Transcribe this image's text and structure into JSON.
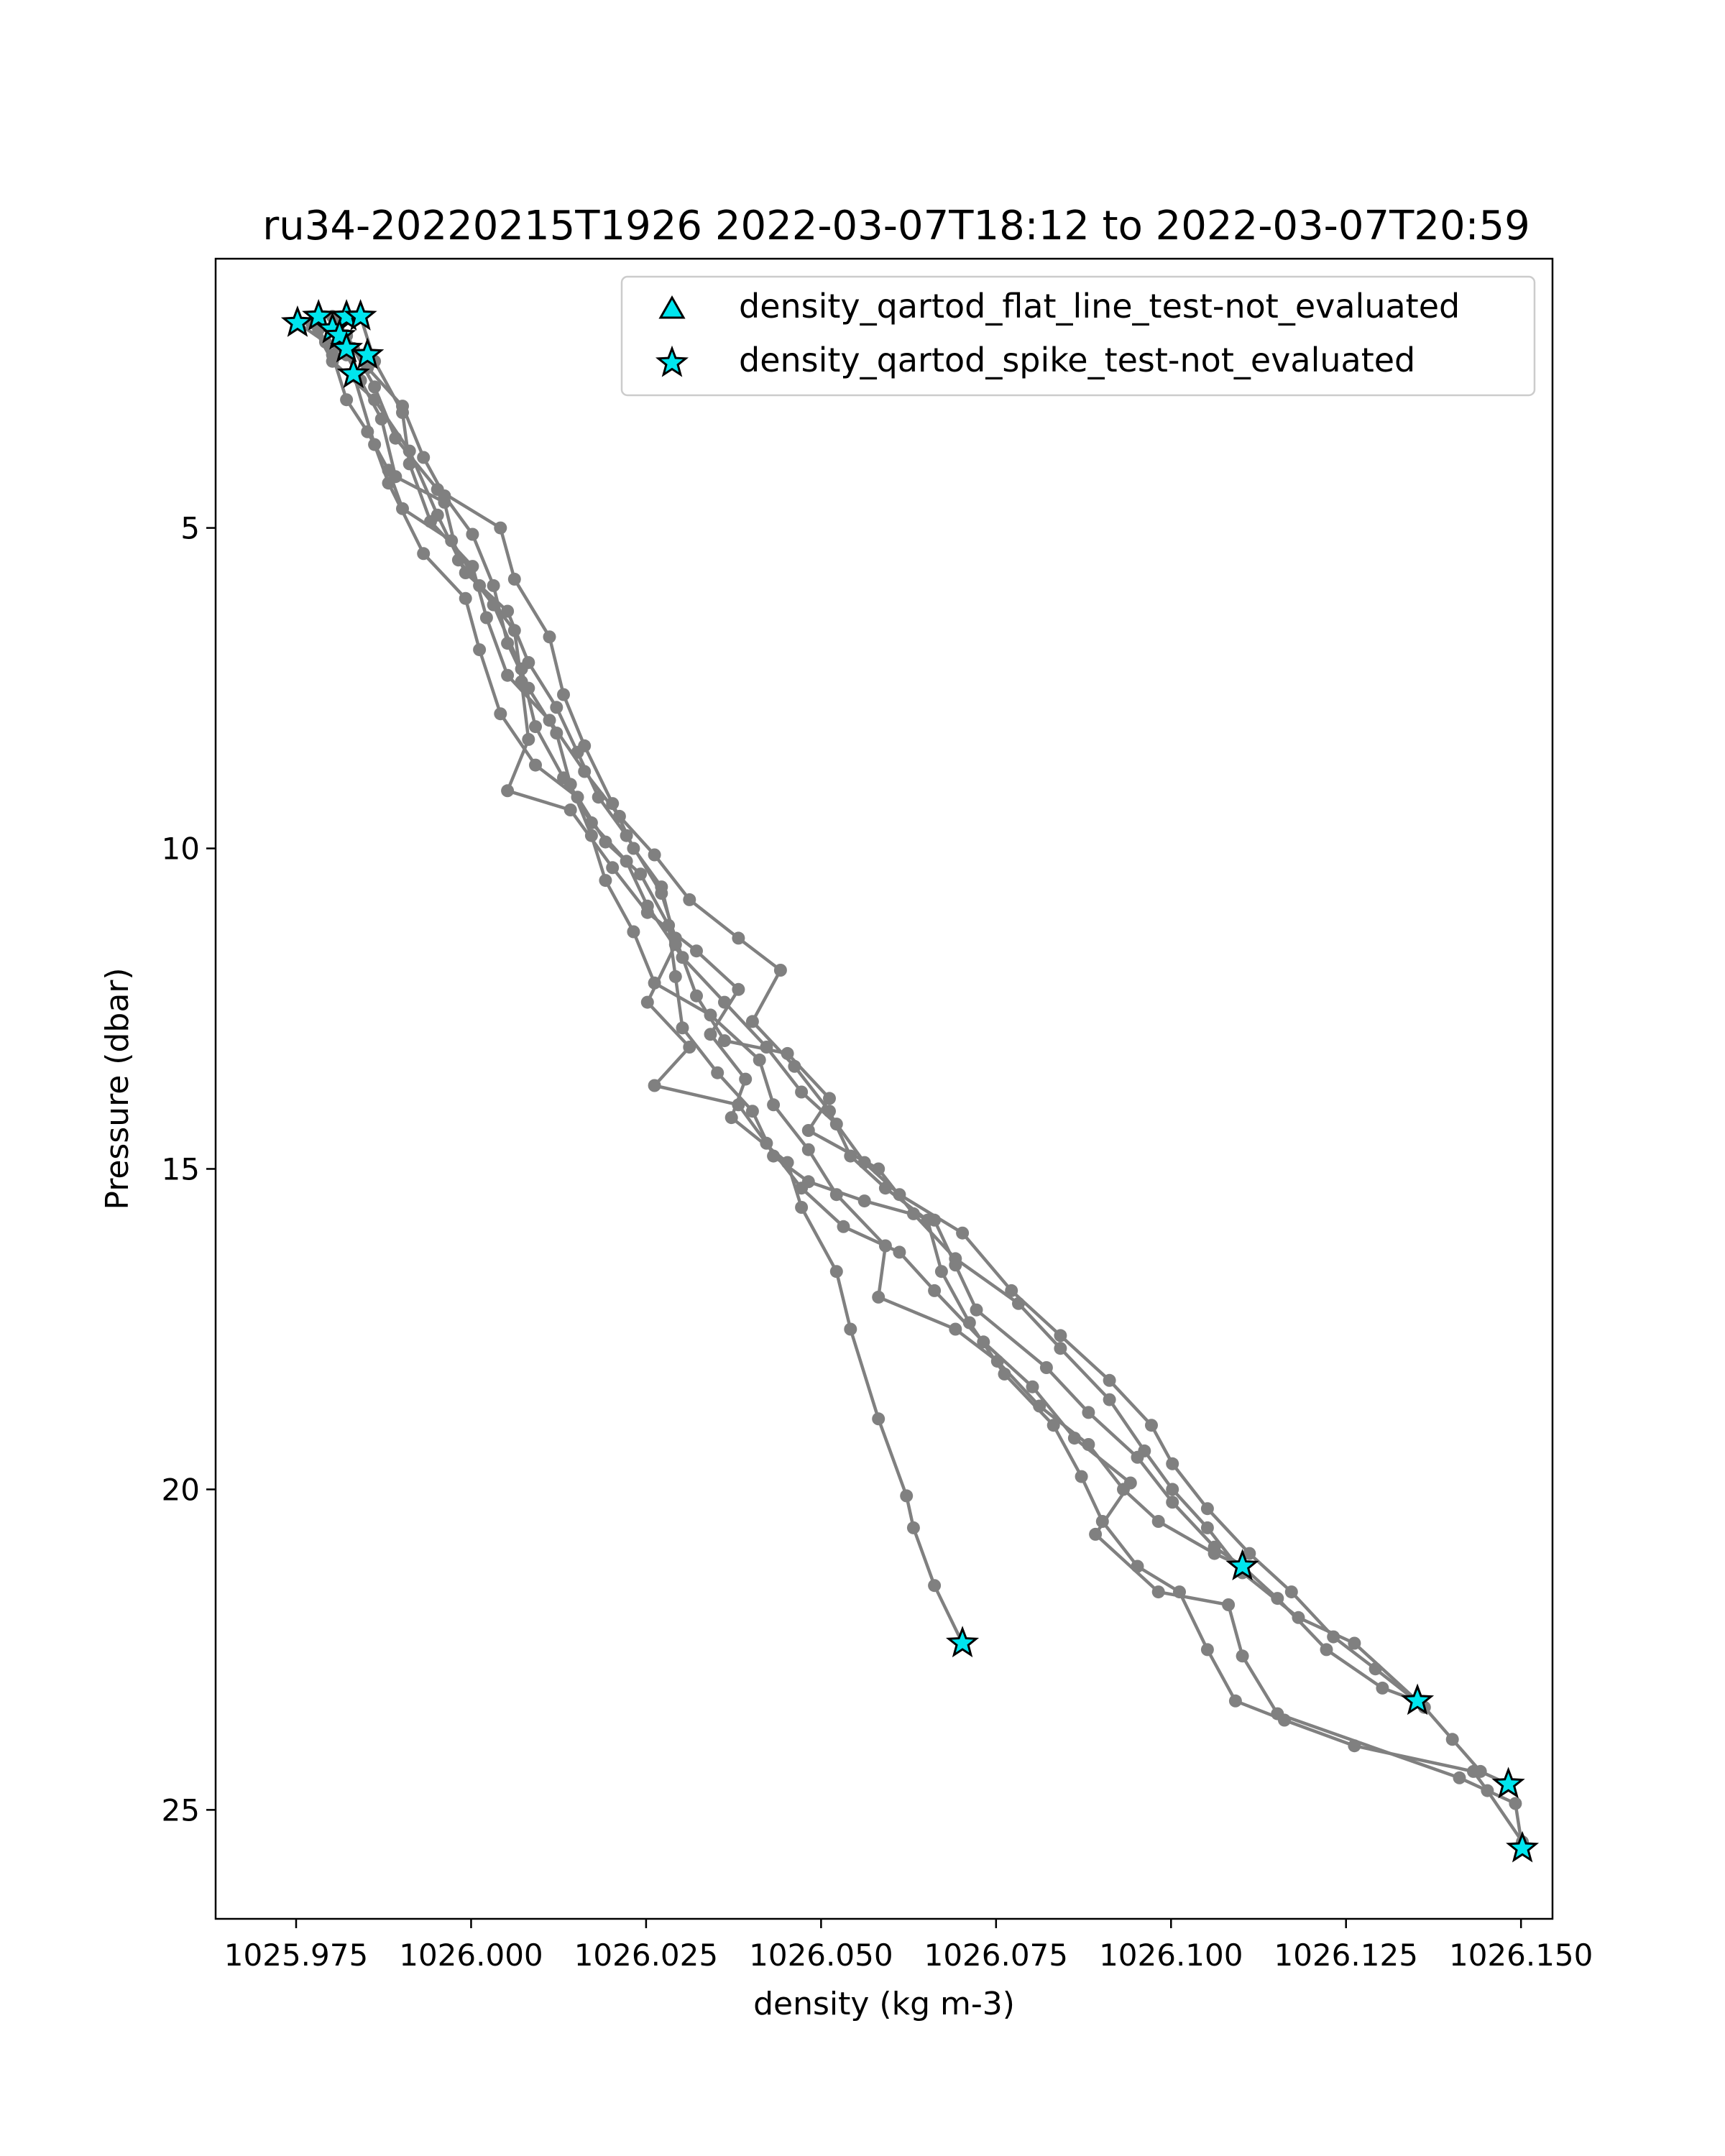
{
  "chart_data": {
    "type": "line",
    "title": "ru34-20220215T1926 2022-03-07T18:12 to 2022-03-07T20:59",
    "xlabel": "density (kg m-3)",
    "ylabel": "Pressure (dbar)",
    "xlim": [
      1025.9635,
      1026.1545
    ],
    "ylim": [
      26.7,
      0.8
    ],
    "y_inverted": true,
    "x_ticks": [
      1025.975,
      1026.0,
      1026.025,
      1026.05,
      1026.075,
      1026.1,
      1026.125,
      1026.15
    ],
    "x_tick_labels": [
      "1025.975",
      "1026.000",
      "1026.025",
      "1026.050",
      "1026.075",
      "1026.100",
      "1026.125",
      "1026.150"
    ],
    "y_ticks": [
      5,
      10,
      15,
      20,
      25
    ],
    "y_tick_labels": [
      "5",
      "10",
      "15",
      "20",
      "25"
    ],
    "grid": false,
    "line_color": "#808080",
    "marker_color": "#00e5ee",
    "legend_position": "top-right",
    "legend": [
      {
        "label": "density_qartod_flat_line_test-not_evaluated",
        "marker": "triangle"
      },
      {
        "label": "density_qartod_spike_test-not_evaluated",
        "marker": "star"
      }
    ],
    "profiles": [
      [
        [
          1025.9822,
          2.0
        ],
        [
          1025.9832,
          2.6
        ],
        [
          1025.9862,
          3.7
        ],
        [
          1025.9882,
          4.3
        ],
        [
          1025.9932,
          5.4
        ],
        [
          1025.9992,
          6.1
        ],
        [
          1026.0012,
          6.9
        ],
        [
          1026.0042,
          7.9
        ],
        [
          1026.0092,
          8.7
        ],
        [
          1026.0152,
          9.2
        ],
        [
          1026.0192,
          9.9
        ],
        [
          1026.0242,
          10.4
        ],
        [
          1026.0282,
          11.2
        ],
        [
          1026.0292,
          12.0
        ],
        [
          1026.0302,
          12.8
        ],
        [
          1026.0352,
          13.5
        ],
        [
          1026.0402,
          14.1
        ],
        [
          1026.0432,
          14.8
        ],
        [
          1026.0482,
          15.2
        ],
        [
          1026.0562,
          15.5
        ],
        [
          1026.0662,
          15.8
        ],
        [
          1026.0692,
          16.5
        ],
        [
          1026.0722,
          17.2
        ],
        [
          1026.0822,
          18.1
        ],
        [
          1026.0882,
          18.8
        ],
        [
          1026.0952,
          19.5
        ],
        [
          1026.1002,
          20.2
        ],
        [
          1026.1062,
          20.9
        ],
        [
          1026.1102,
          21.2
        ],
        [
          1026.1152,
          21.7
        ],
        [
          1026.1222,
          22.5
        ],
        [
          1026.1302,
          23.1
        ],
        [
          1026.1352,
          23.3
        ]
      ],
      [
        [
          1025.9752,
          1.8
        ],
        [
          1025.9792,
          2.1
        ],
        [
          1025.9822,
          2.3
        ],
        [
          1025.9842,
          2.7
        ],
        [
          1025.9872,
          3.3
        ],
        [
          1025.9892,
          4.2
        ],
        [
          1025.9962,
          4.6
        ],
        [
          1025.9982,
          5.5
        ],
        [
          1026.0032,
          6.2
        ],
        [
          1026.0072,
          7.2
        ],
        [
          1026.0092,
          8.1
        ],
        [
          1026.0132,
          8.9
        ],
        [
          1026.0172,
          9.6
        ],
        [
          1026.0222,
          10.2
        ],
        [
          1026.0252,
          10.9
        ],
        [
          1026.0302,
          11.7
        ],
        [
          1026.0362,
          12.4
        ],
        [
          1026.0422,
          13.1
        ],
        [
          1026.0472,
          13.8
        ],
        [
          1026.0522,
          14.3
        ],
        [
          1026.0562,
          14.9
        ],
        [
          1026.0612,
          15.4
        ],
        [
          1026.0702,
          16.0
        ],
        [
          1026.0772,
          16.9
        ],
        [
          1026.0842,
          17.6
        ],
        [
          1026.0912,
          18.3
        ],
        [
          1026.0972,
          19.0
        ],
        [
          1026.1002,
          19.6
        ],
        [
          1026.1052,
          20.3
        ],
        [
          1026.1112,
          21.0
        ],
        [
          1026.1172,
          21.6
        ],
        [
          1026.1232,
          22.3
        ],
        [
          1026.1292,
          22.8
        ],
        [
          1026.1362,
          23.4
        ],
        [
          1026.1402,
          23.9
        ],
        [
          1026.1442,
          24.4
        ],
        [
          1026.1482,
          24.6
        ]
      ],
      [
        [
          1025.9842,
          1.7
        ],
        [
          1025.9862,
          2.4
        ],
        [
          1025.9902,
          3.2
        ],
        [
          1025.9912,
          4.0
        ],
        [
          1025.9942,
          4.9
        ],
        [
          1026.0002,
          5.6
        ],
        [
          1026.0022,
          6.4
        ],
        [
          1026.0052,
          7.3
        ],
        [
          1026.0112,
          8.0
        ],
        [
          1026.0162,
          8.8
        ],
        [
          1026.0212,
          9.5
        ],
        [
          1026.0262,
          10.1
        ],
        [
          1026.0312,
          10.8
        ],
        [
          1026.0382,
          11.4
        ],
        [
          1026.0442,
          11.9
        ],
        [
          1026.0402,
          12.7
        ],
        [
          1026.0462,
          13.4
        ],
        [
          1026.0512,
          14.1
        ],
        [
          1026.0542,
          14.8
        ],
        [
          1026.0592,
          15.3
        ],
        [
          1026.0652,
          15.8
        ],
        [
          1026.0672,
          16.6
        ],
        [
          1026.0712,
          17.4
        ],
        [
          1026.0762,
          18.2
        ],
        [
          1026.0832,
          19.0
        ],
        [
          1026.0872,
          19.8
        ],
        [
          1026.0902,
          20.5
        ],
        [
          1026.0952,
          21.2
        ],
        [
          1026.1012,
          21.6
        ],
        [
          1026.1052,
          22.5
        ],
        [
          1026.1092,
          23.3
        ],
        [
          1026.1162,
          23.6
        ],
        [
          1026.1262,
          24.0
        ],
        [
          1026.1432,
          24.4
        ],
        [
          1026.1452,
          24.7
        ],
        [
          1026.1502,
          25.5
        ]
      ],
      [
        [
          1025.9812,
          1.8
        ],
        [
          1025.9832,
          2.2
        ],
        [
          1025.9862,
          2.8
        ],
        [
          1025.9892,
          3.6
        ],
        [
          1025.9952,
          4.4
        ],
        [
          1026.0042,
          5.0
        ],
        [
          1026.0062,
          5.8
        ],
        [
          1026.0112,
          6.7
        ],
        [
          1026.0132,
          7.6
        ],
        [
          1026.0162,
          8.4
        ],
        [
          1026.0202,
          9.3
        ],
        [
          1026.0232,
          10.0
        ],
        [
          1026.0272,
          10.6
        ],
        [
          1026.0292,
          11.5
        ],
        [
          1026.0252,
          12.4
        ],
        [
          1026.0312,
          13.1
        ],
        [
          1026.0262,
          13.7
        ],
        [
          1026.0382,
          14.0
        ],
        [
          1026.0422,
          14.6
        ],
        [
          1026.0472,
          15.3
        ],
        [
          1026.0532,
          15.9
        ],
        [
          1026.0612,
          16.3
        ],
        [
          1026.0662,
          16.9
        ],
        [
          1026.0732,
          17.7
        ],
        [
          1026.0802,
          18.4
        ],
        [
          1026.0862,
          19.2
        ],
        [
          1026.0942,
          19.9
        ],
        [
          1026.0892,
          20.7
        ],
        [
          1026.0982,
          21.6
        ],
        [
          1026.1082,
          21.8
        ],
        [
          1026.1102,
          22.6
        ],
        [
          1026.1152,
          23.5
        ],
        [
          1026.1412,
          24.5
        ],
        [
          1026.1492,
          24.9
        ],
        [
          1026.1502,
          25.6
        ]
      ],
      [
        [
          1025.9782,
          1.9
        ],
        [
          1025.9802,
          2.3
        ],
        [
          1025.9822,
          3.0
        ],
        [
          1025.9852,
          3.5
        ],
        [
          1025.9882,
          4.1
        ],
        [
          1025.9902,
          4.7
        ],
        [
          1025.9972,
          5.2
        ],
        [
          1026.0012,
          5.9
        ],
        [
          1026.0062,
          6.6
        ],
        [
          1026.0072,
          7.4
        ],
        [
          1026.0082,
          8.3
        ],
        [
          1026.0052,
          9.1
        ],
        [
          1026.0142,
          9.4
        ],
        [
          1026.0202,
          10.3
        ],
        [
          1026.0252,
          11.0
        ],
        [
          1026.0322,
          11.6
        ],
        [
          1026.0382,
          12.2
        ],
        [
          1026.0342,
          12.9
        ],
        [
          1026.0392,
          13.6
        ],
        [
          1026.0372,
          14.2
        ],
        [
          1026.0452,
          14.9
        ],
        [
          1026.0472,
          15.6
        ],
        [
          1026.0522,
          16.6
        ],
        [
          1026.0542,
          17.5
        ],
        [
          1026.0582,
          18.9
        ],
        [
          1026.0622,
          20.1
        ],
        [
          1026.0632,
          20.6
        ],
        [
          1026.0662,
          21.5
        ],
        [
          1026.0702,
          22.4
        ]
      ],
      [
        [
          1025.9802,
          1.7
        ],
        [
          1025.9822,
          2.0
        ],
        [
          1025.9852,
          2.5
        ],
        [
          1025.9902,
          3.1
        ],
        [
          1025.9932,
          3.9
        ],
        [
          1025.9962,
          4.5
        ],
        [
          1026.0002,
          5.1
        ],
        [
          1026.0032,
          5.9
        ],
        [
          1026.0052,
          6.8
        ],
        [
          1026.0082,
          7.5
        ],
        [
          1026.0122,
          8.2
        ],
        [
          1026.0142,
          9.0
        ],
        [
          1026.0172,
          9.8
        ],
        [
          1026.0192,
          10.5
        ],
        [
          1026.0232,
          11.3
        ],
        [
          1026.0262,
          12.1
        ],
        [
          1026.0342,
          12.6
        ],
        [
          1026.0412,
          13.3
        ],
        [
          1026.0432,
          14.0
        ],
        [
          1026.0482,
          14.7
        ],
        [
          1026.0522,
          15.4
        ],
        [
          1026.0592,
          16.2
        ],
        [
          1026.0582,
          17.0
        ],
        [
          1026.0692,
          17.5
        ],
        [
          1026.0752,
          18.0
        ],
        [
          1026.0812,
          18.7
        ],
        [
          1026.0882,
          19.3
        ],
        [
          1026.0932,
          20.0
        ],
        [
          1026.0982,
          20.5
        ],
        [
          1026.1062,
          21.0
        ],
        [
          1026.1102,
          21.2
        ]
      ],
      [
        [
          1025.9772,
          1.8
        ],
        [
          1025.9802,
          2.4
        ],
        [
          1025.9862,
          3.0
        ],
        [
          1025.9912,
          3.8
        ],
        [
          1025.9952,
          4.8
        ],
        [
          1025.9992,
          5.7
        ],
        [
          1026.0052,
          6.3
        ],
        [
          1026.0082,
          7.1
        ],
        [
          1026.0122,
          7.8
        ],
        [
          1026.0152,
          8.5
        ],
        [
          1026.0182,
          9.2
        ],
        [
          1026.0222,
          9.8
        ],
        [
          1026.0272,
          10.7
        ],
        [
          1026.0292,
          11.4
        ],
        [
          1026.0322,
          12.3
        ],
        [
          1026.0362,
          13.0
        ],
        [
          1026.0452,
          13.2
        ],
        [
          1026.0512,
          13.9
        ],
        [
          1026.0482,
          14.4
        ],
        [
          1026.0582,
          15.0
        ],
        [
          1026.0632,
          15.7
        ],
        [
          1026.0692,
          16.4
        ],
        [
          1026.0782,
          17.1
        ],
        [
          1026.0842,
          17.8
        ],
        [
          1026.0912,
          18.6
        ],
        [
          1026.0962,
          19.4
        ],
        [
          1026.1002,
          20.0
        ],
        [
          1026.1052,
          20.6
        ],
        [
          1026.1102,
          21.3
        ],
        [
          1026.1182,
          22.0
        ],
        [
          1026.1262,
          22.4
        ],
        [
          1026.1352,
          23.3
        ]
      ]
    ],
    "spike_not_evaluated_points": [
      [
        1025.9752,
        1.8
      ],
      [
        1025.9782,
        1.7
      ],
      [
        1025.9802,
        1.9
      ],
      [
        1025.9822,
        1.7
      ],
      [
        1025.9842,
        1.7
      ],
      [
        1025.9812,
        2.0
      ],
      [
        1025.9822,
        2.2
      ],
      [
        1025.9852,
        2.3
      ],
      [
        1025.9832,
        2.6
      ],
      [
        1026.1102,
        21.2
      ],
      [
        1026.0702,
        22.4
      ],
      [
        1026.1352,
        23.3
      ],
      [
        1026.1482,
        24.6
      ],
      [
        1026.1502,
        25.6
      ]
    ]
  }
}
